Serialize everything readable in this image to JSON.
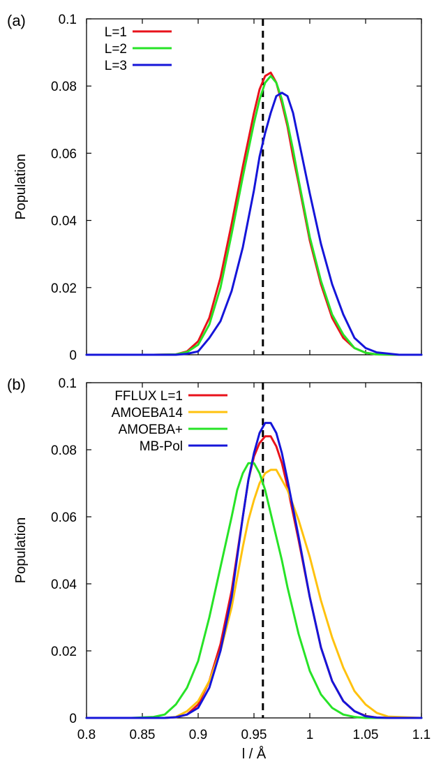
{
  "colors": {
    "red": "#e8121b",
    "green": "#27e327",
    "blue": "#1515d9",
    "gold": "#ffc20e",
    "dashed_line": "#000000"
  },
  "chart_data": [
    {
      "type": "line",
      "panel_label": "(a)",
      "xlabel": "",
      "ylabel": "Population",
      "xlim": [
        0.8,
        1.1
      ],
      "ylim": [
        0,
        0.1
      ],
      "x_ticks": [
        0.8,
        0.85,
        0.9,
        0.95,
        1.0,
        1.05,
        1.1
      ],
      "x_tick_labels": [
        "",
        "",
        "",
        "",
        "",
        "",
        ""
      ],
      "y_ticks": [
        0,
        0.02,
        0.04,
        0.06,
        0.08,
        0.1
      ],
      "y_tick_labels": [
        "0",
        "0.02",
        "0.04",
        "0.06",
        "0.08",
        "0.1"
      ],
      "reference_line_x": 0.958,
      "legend_position": "top-left",
      "x": [
        0.8,
        0.86,
        0.88,
        0.89,
        0.9,
        0.91,
        0.92,
        0.93,
        0.94,
        0.95,
        0.955,
        0.96,
        0.965,
        0.97,
        0.975,
        0.98,
        0.985,
        0.99,
        1.0,
        1.01,
        1.02,
        1.03,
        1.04,
        1.05,
        1.06,
        1.08,
        1.1
      ],
      "series": [
        {
          "name": "L=1",
          "color": "#e8121b",
          "values": [
            0,
            0,
            0.0001,
            0.001,
            0.004,
            0.011,
            0.023,
            0.039,
            0.056,
            0.072,
            0.079,
            0.083,
            0.084,
            0.081,
            0.075,
            0.068,
            0.059,
            0.051,
            0.034,
            0.021,
            0.011,
            0.005,
            0.002,
            0.0006,
            0.0001,
            0,
            0
          ]
        },
        {
          "name": "L=2",
          "color": "#27e327",
          "values": [
            0,
            0,
            0.0001,
            0.0008,
            0.003,
            0.009,
            0.02,
            0.036,
            0.053,
            0.069,
            0.076,
            0.081,
            0.083,
            0.081,
            0.076,
            0.069,
            0.061,
            0.052,
            0.035,
            0.022,
            0.012,
            0.006,
            0.002,
            0.0006,
            0.0001,
            0,
            0
          ]
        },
        {
          "name": "L=3",
          "color": "#1515d9",
          "values": [
            0,
            0,
            0,
            0.0003,
            0.001,
            0.005,
            0.01,
            0.019,
            0.032,
            0.049,
            0.059,
            0.066,
            0.072,
            0.077,
            0.078,
            0.077,
            0.072,
            0.064,
            0.048,
            0.033,
            0.021,
            0.012,
            0.005,
            0.002,
            0.0007,
            0,
            0
          ]
        }
      ]
    },
    {
      "type": "line",
      "panel_label": "(b)",
      "xlabel": "l / Å",
      "ylabel": "Population",
      "xlim": [
        0.8,
        1.1
      ],
      "ylim": [
        0,
        0.1
      ],
      "x_ticks": [
        0.8,
        0.85,
        0.9,
        0.95,
        1.0,
        1.05,
        1.1
      ],
      "x_tick_labels": [
        "0.8",
        "0.85",
        "0.9",
        "0.95",
        "1",
        "1.05",
        "1.1"
      ],
      "y_ticks": [
        0,
        0.02,
        0.04,
        0.06,
        0.08,
        0.1
      ],
      "y_tick_labels": [
        "0",
        "0.02",
        "0.04",
        "0.06",
        "0.08",
        "0.1"
      ],
      "reference_line_x": 0.958,
      "legend_position": "top-left",
      "x": [
        0.8,
        0.84,
        0.86,
        0.87,
        0.88,
        0.89,
        0.9,
        0.91,
        0.92,
        0.93,
        0.935,
        0.94,
        0.945,
        0.95,
        0.955,
        0.96,
        0.965,
        0.97,
        0.975,
        0.98,
        0.99,
        1.0,
        1.01,
        1.02,
        1.03,
        1.04,
        1.05,
        1.06,
        1.07,
        1.1
      ],
      "series": [
        {
          "name": "FFLUX L=1",
          "color": "#e8121b",
          "values": [
            0,
            0,
            0,
            0,
            0.0002,
            0.001,
            0.004,
            0.011,
            0.022,
            0.038,
            0.049,
            0.06,
            0.071,
            0.078,
            0.082,
            0.084,
            0.084,
            0.081,
            0.076,
            0.069,
            0.053,
            0.036,
            0.021,
            0.011,
            0.005,
            0.002,
            0.0006,
            0.0001,
            0,
            0
          ]
        },
        {
          "name": "AMOEBA14",
          "color": "#ffc20e",
          "values": [
            0,
            0,
            0,
            0,
            0.0003,
            0.002,
            0.005,
            0.011,
            0.02,
            0.033,
            0.042,
            0.051,
            0.059,
            0.065,
            0.07,
            0.073,
            0.074,
            0.074,
            0.071,
            0.068,
            0.059,
            0.048,
            0.035,
            0.024,
            0.015,
            0.008,
            0.004,
            0.0015,
            0.0004,
            0
          ]
        },
        {
          "name": "AMOEBA+",
          "color": "#27e327",
          "values": [
            0,
            0,
            0.0003,
            0.001,
            0.004,
            0.009,
            0.017,
            0.03,
            0.045,
            0.06,
            0.068,
            0.073,
            0.076,
            0.076,
            0.073,
            0.068,
            0.061,
            0.054,
            0.047,
            0.039,
            0.025,
            0.014,
            0.007,
            0.003,
            0.001,
            0.0003,
            0,
            0,
            0,
            0
          ]
        },
        {
          "name": "MB-Pol",
          "color": "#1515d9",
          "values": [
            0,
            0,
            0,
            0,
            0.0002,
            0.001,
            0.003,
            0.009,
            0.02,
            0.036,
            0.048,
            0.06,
            0.071,
            0.079,
            0.085,
            0.088,
            0.088,
            0.085,
            0.079,
            0.071,
            0.054,
            0.036,
            0.021,
            0.011,
            0.005,
            0.002,
            0.0005,
            0.0001,
            0,
            0
          ]
        }
      ]
    }
  ]
}
